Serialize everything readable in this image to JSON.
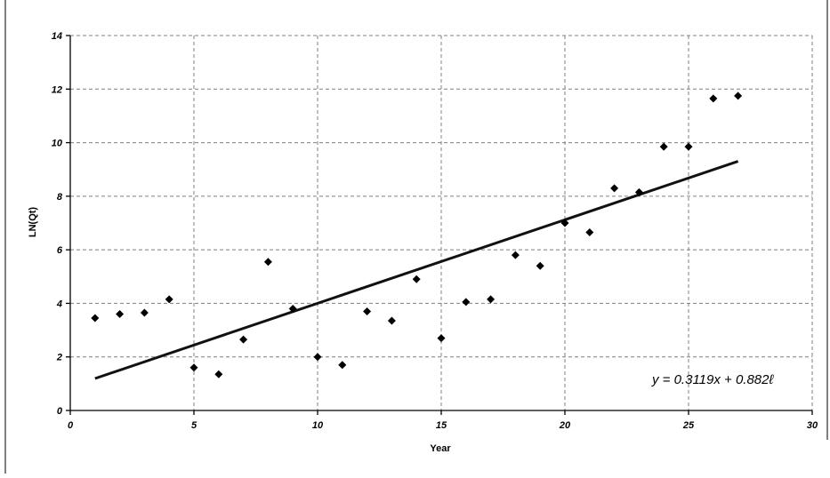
{
  "chart_data": {
    "type": "scatter",
    "xlabel": "Year",
    "ylabel": "LN(Qt)",
    "xlim": [
      0,
      30
    ],
    "ylim": [
      0,
      14
    ],
    "xticks": [
      0,
      5,
      10,
      15,
      20,
      25,
      30
    ],
    "yticks": [
      0,
      2,
      4,
      6,
      8,
      10,
      12,
      14
    ],
    "grid": true,
    "legend": "none",
    "points": [
      {
        "x": 1,
        "y": 3.45
      },
      {
        "x": 2,
        "y": 3.6
      },
      {
        "x": 3,
        "y": 3.65
      },
      {
        "x": 4,
        "y": 4.15
      },
      {
        "x": 5,
        "y": 1.6
      },
      {
        "x": 6,
        "y": 1.35
      },
      {
        "x": 7,
        "y": 2.65
      },
      {
        "x": 8,
        "y": 5.55
      },
      {
        "x": 9,
        "y": 3.8
      },
      {
        "x": 10,
        "y": 2.0
      },
      {
        "x": 11,
        "y": 1.7
      },
      {
        "x": 12,
        "y": 3.7
      },
      {
        "x": 13,
        "y": 3.35
      },
      {
        "x": 14,
        "y": 4.9
      },
      {
        "x": 15,
        "y": 2.7
      },
      {
        "x": 16,
        "y": 4.05
      },
      {
        "x": 17,
        "y": 4.15
      },
      {
        "x": 18,
        "y": 5.8
      },
      {
        "x": 19,
        "y": 5.4
      },
      {
        "x": 20,
        "y": 7.0
      },
      {
        "x": 21,
        "y": 6.65
      },
      {
        "x": 22,
        "y": 8.3
      },
      {
        "x": 23,
        "y": 8.15
      },
      {
        "x": 24,
        "y": 9.85
      },
      {
        "x": 25,
        "y": 9.85
      },
      {
        "x": 26,
        "y": 11.65
      },
      {
        "x": 27,
        "y": 11.75
      }
    ],
    "trendline": {
      "type": "linear",
      "slope": 0.3119,
      "intercept": 0.8826,
      "x_range": [
        1,
        27
      ]
    },
    "equation_label": "y = 0.3119x + 0.882ℓ"
  }
}
